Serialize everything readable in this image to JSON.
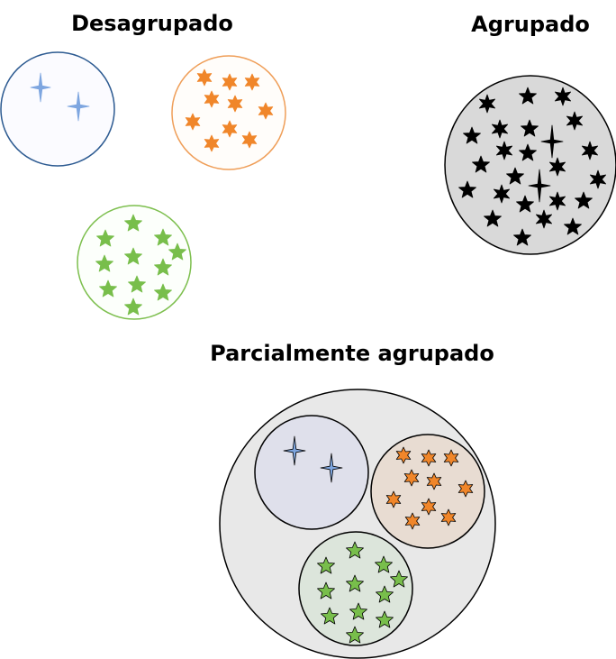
{
  "titles": {
    "ungrouped": "Desagrupado",
    "grouped": "Agrupado",
    "partial": "Parcialmente agrupado"
  },
  "colors": {
    "blue": "#7ea6e0",
    "blue_outline": "#2c5a91",
    "orange": "#f0862a",
    "orange_outline": "#ef9e58",
    "green": "#78be4b",
    "green_outline": "#7dbf4e",
    "black": "#000000",
    "grouped_fill": "#d9d9d9",
    "partial_fill": "#e8e8e8",
    "blue_group_fill": "#dfe0eb",
    "orange_group_fill": "#e8dcd2",
    "green_group_fill": "#dce5db"
  },
  "icons": {
    "sparkle": "four-point-star-icon",
    "star": "six-point-star-icon",
    "green_star": "five-point-star-icon"
  }
}
